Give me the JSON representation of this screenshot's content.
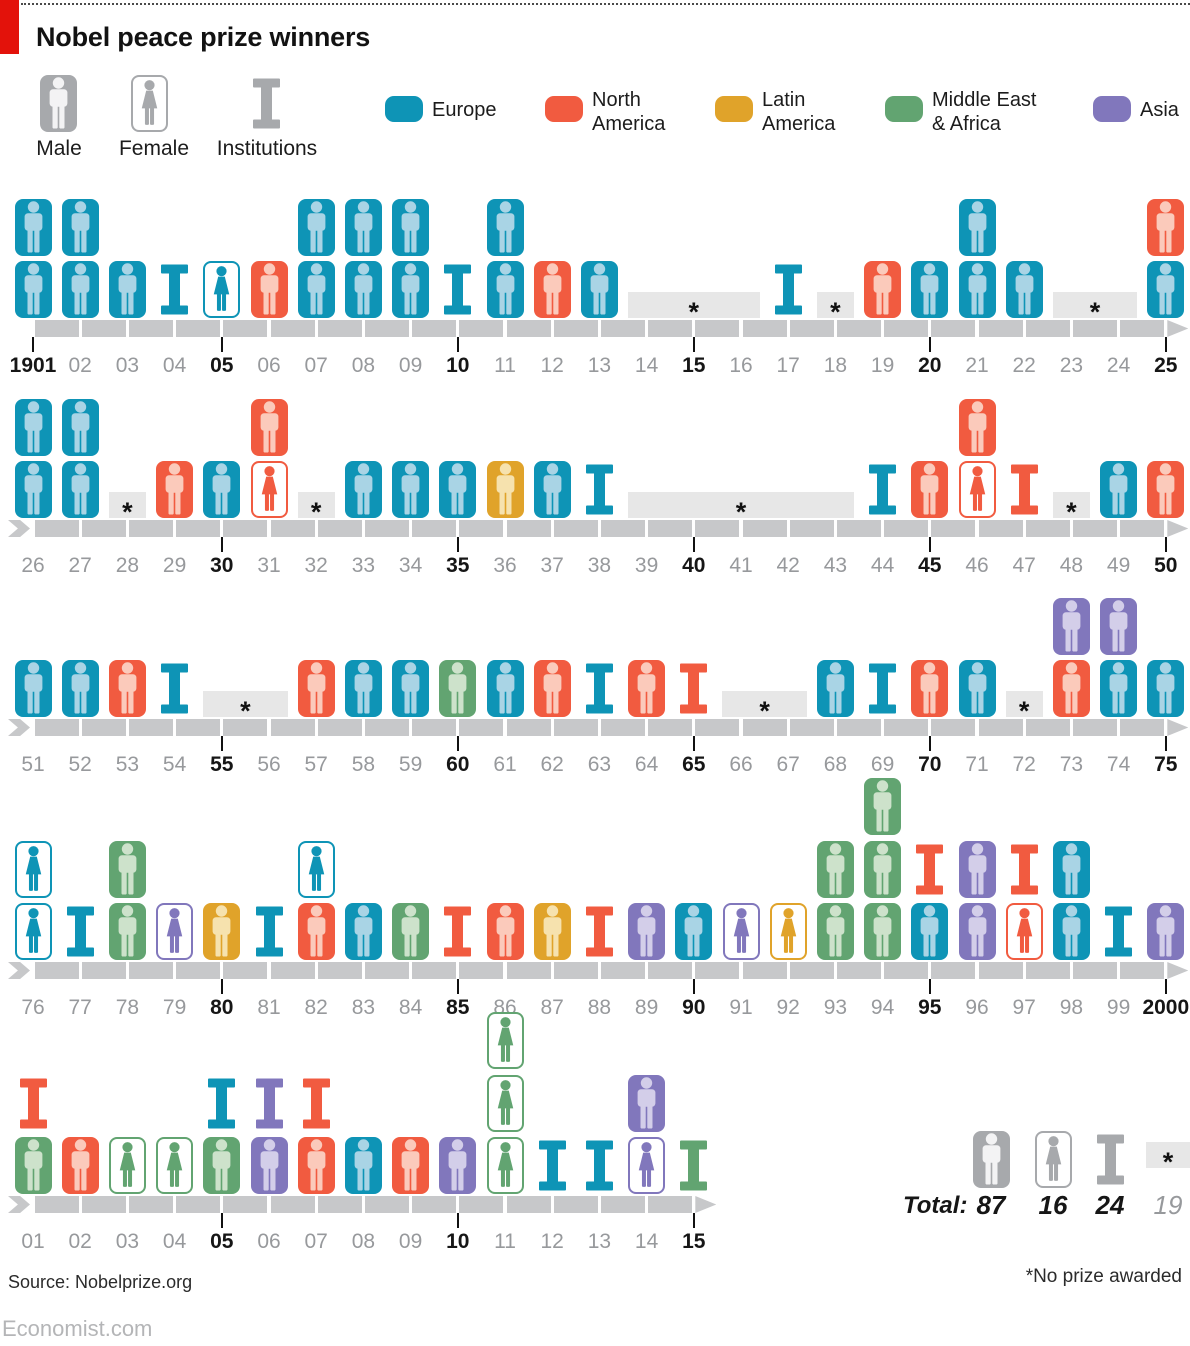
{
  "header": {
    "title": "Nobel peace prize winners"
  },
  "icon_legend": [
    {
      "key": "male",
      "label": "Male"
    },
    {
      "key": "female",
      "label": "Female"
    },
    {
      "key": "institution",
      "label": "Institutions"
    }
  ],
  "region_legend": [
    {
      "key": "eu",
      "lines": [
        "Europe"
      ]
    },
    {
      "key": "na",
      "lines": [
        "North",
        "America"
      ]
    },
    {
      "key": "la",
      "lines": [
        "Latin",
        "America"
      ]
    },
    {
      "key": "me",
      "lines": [
        "Middle East",
        "& Africa"
      ]
    },
    {
      "key": "as",
      "lines": [
        "Asia"
      ]
    }
  ],
  "totals": {
    "label": "Total:",
    "items": [
      {
        "icon": "male",
        "value": "87"
      },
      {
        "icon": "female",
        "value": "16"
      },
      {
        "icon": "institution",
        "value": "24"
      },
      {
        "icon": "noprize",
        "value": "19"
      }
    ]
  },
  "footer": {
    "source": "Source: Nobelprize.org",
    "note": "*No prize awarded",
    "brand": "Economist.com"
  },
  "chart_data": {
    "type": "pictogram-timeline",
    "title": "Nobel peace prize winners, 1901-2015",
    "noprize_marker": "*",
    "gray": {
      "color": "#a7a9ac",
      "tint": "#f3f3f4"
    },
    "regions": {
      "eu": {
        "label": "Europe",
        "color": "#0e94b6",
        "tint": "#a9d4e5"
      },
      "na": {
        "label": "North America",
        "color": "#f15b40",
        "tint": "#fbcabb"
      },
      "la": {
        "label": "Latin America",
        "color": "#e0a32a",
        "tint": "#f6e2ae"
      },
      "me": {
        "label": "Middle East & Africa",
        "color": "#62a471",
        "tint": "#cde2cb"
      },
      "as": {
        "label": "Asia",
        "color": "#8177bc",
        "tint": "#d3cee9"
      }
    },
    "icon_types": {
      "m": "male",
      "f": "female",
      "i": "institution"
    },
    "rows": [
      {
        "noprize": [
          [
            13,
            15
          ],
          [
            17,
            17
          ],
          [
            22,
            23
          ]
        ],
        "years": [
          {
            "label": "1901",
            "bold": true,
            "icons": [
              "m:eu",
              "m:eu"
            ]
          },
          {
            "label": "02",
            "icons": [
              "m:eu",
              "m:eu"
            ]
          },
          {
            "label": "03",
            "icons": [
              "m:eu"
            ]
          },
          {
            "label": "04",
            "icons": [
              "i:eu"
            ]
          },
          {
            "label": "05",
            "bold": true,
            "icons": [
              "f:eu"
            ]
          },
          {
            "label": "06",
            "icons": [
              "m:na"
            ]
          },
          {
            "label": "07",
            "icons": [
              "m:eu",
              "m:eu"
            ]
          },
          {
            "label": "08",
            "icons": [
              "m:eu",
              "m:eu"
            ]
          },
          {
            "label": "09",
            "icons": [
              "m:eu",
              "m:eu"
            ]
          },
          {
            "label": "10",
            "bold": true,
            "icons": [
              "i:eu"
            ]
          },
          {
            "label": "11",
            "icons": [
              "m:eu",
              "m:eu"
            ]
          },
          {
            "label": "12",
            "icons": [
              "m:na"
            ]
          },
          {
            "label": "13",
            "icons": [
              "m:eu"
            ]
          },
          {
            "label": "14",
            "icons": []
          },
          {
            "label": "15",
            "bold": true,
            "icons": []
          },
          {
            "label": "16",
            "icons": []
          },
          {
            "label": "17",
            "icons": [
              "i:eu"
            ]
          },
          {
            "label": "18",
            "icons": []
          },
          {
            "label": "19",
            "icons": [
              "m:na"
            ]
          },
          {
            "label": "20",
            "bold": true,
            "icons": [
              "m:eu"
            ]
          },
          {
            "label": "21",
            "icons": [
              "m:eu",
              "m:eu"
            ]
          },
          {
            "label": "22",
            "icons": [
              "m:eu"
            ]
          },
          {
            "label": "23",
            "icons": []
          },
          {
            "label": "24",
            "icons": []
          },
          {
            "label": "25",
            "bold": true,
            "icons": [
              "m:na",
              "m:eu"
            ]
          }
        ]
      },
      {
        "noprize": [
          [
            2,
            2
          ],
          [
            6,
            6
          ],
          [
            13,
            17
          ],
          [
            22,
            22
          ]
        ],
        "years": [
          {
            "label": "26",
            "icons": [
              "m:eu",
              "m:eu"
            ]
          },
          {
            "label": "27",
            "icons": [
              "m:eu",
              "m:eu"
            ]
          },
          {
            "label": "28",
            "icons": []
          },
          {
            "label": "29",
            "icons": [
              "m:na"
            ]
          },
          {
            "label": "30",
            "bold": true,
            "icons": [
              "m:eu"
            ]
          },
          {
            "label": "31",
            "icons": [
              "m:na",
              "f:na"
            ]
          },
          {
            "label": "32",
            "icons": []
          },
          {
            "label": "33",
            "icons": [
              "m:eu"
            ]
          },
          {
            "label": "34",
            "icons": [
              "m:eu"
            ]
          },
          {
            "label": "35",
            "bold": true,
            "icons": [
              "m:eu"
            ]
          },
          {
            "label": "36",
            "icons": [
              "m:la"
            ]
          },
          {
            "label": "37",
            "icons": [
              "m:eu"
            ]
          },
          {
            "label": "38",
            "icons": [
              "i:eu"
            ]
          },
          {
            "label": "39",
            "icons": []
          },
          {
            "label": "40",
            "bold": true,
            "icons": []
          },
          {
            "label": "41",
            "icons": []
          },
          {
            "label": "42",
            "icons": []
          },
          {
            "label": "43",
            "icons": []
          },
          {
            "label": "44",
            "icons": [
              "i:eu"
            ]
          },
          {
            "label": "45",
            "bold": true,
            "icons": [
              "m:na"
            ]
          },
          {
            "label": "46",
            "icons": [
              "m:na",
              "f:na"
            ]
          },
          {
            "label": "47",
            "icons": [
              "i:na"
            ]
          },
          {
            "label": "48",
            "icons": []
          },
          {
            "label": "49",
            "icons": [
              "m:eu"
            ]
          },
          {
            "label": "50",
            "bold": true,
            "icons": [
              "m:na"
            ]
          }
        ]
      },
      {
        "noprize": [
          [
            4,
            5
          ],
          [
            15,
            16
          ],
          [
            21,
            21
          ]
        ],
        "years": [
          {
            "label": "51",
            "icons": [
              "m:eu"
            ]
          },
          {
            "label": "52",
            "icons": [
              "m:eu"
            ]
          },
          {
            "label": "53",
            "icons": [
              "m:na"
            ]
          },
          {
            "label": "54",
            "icons": [
              "i:eu"
            ]
          },
          {
            "label": "55",
            "bold": true,
            "icons": []
          },
          {
            "label": "56",
            "icons": []
          },
          {
            "label": "57",
            "icons": [
              "m:na"
            ]
          },
          {
            "label": "58",
            "icons": [
              "m:eu"
            ]
          },
          {
            "label": "59",
            "icons": [
              "m:eu"
            ]
          },
          {
            "label": "60",
            "bold": true,
            "icons": [
              "m:me"
            ]
          },
          {
            "label": "61",
            "icons": [
              "m:eu"
            ]
          },
          {
            "label": "62",
            "icons": [
              "m:na"
            ]
          },
          {
            "label": "63",
            "icons": [
              "i:eu"
            ]
          },
          {
            "label": "64",
            "icons": [
              "m:na"
            ]
          },
          {
            "label": "65",
            "bold": true,
            "icons": [
              "i:na"
            ]
          },
          {
            "label": "66",
            "icons": []
          },
          {
            "label": "67",
            "icons": []
          },
          {
            "label": "68",
            "icons": [
              "m:eu"
            ]
          },
          {
            "label": "69",
            "icons": [
              "i:eu"
            ]
          },
          {
            "label": "70",
            "bold": true,
            "icons": [
              "m:na"
            ]
          },
          {
            "label": "71",
            "icons": [
              "m:eu"
            ]
          },
          {
            "label": "72",
            "icons": []
          },
          {
            "label": "73",
            "icons": [
              "m:as",
              "m:na"
            ]
          },
          {
            "label": "74",
            "icons": [
              "m:as",
              "m:eu"
            ]
          },
          {
            "label": "75",
            "bold": true,
            "icons": [
              "m:eu"
            ]
          }
        ]
      },
      {
        "noprize": [],
        "years": [
          {
            "label": "76",
            "icons": [
              "f:eu",
              "f:eu"
            ]
          },
          {
            "label": "77",
            "icons": [
              "i:eu"
            ]
          },
          {
            "label": "78",
            "icons": [
              "m:me",
              "m:me"
            ]
          },
          {
            "label": "79",
            "icons": [
              "f:as"
            ]
          },
          {
            "label": "80",
            "bold": true,
            "icons": [
              "m:la"
            ]
          },
          {
            "label": "81",
            "icons": [
              "i:eu"
            ]
          },
          {
            "label": "82",
            "icons": [
              "f:eu",
              "m:na"
            ]
          },
          {
            "label": "83",
            "icons": [
              "m:eu"
            ]
          },
          {
            "label": "84",
            "icons": [
              "m:me"
            ]
          },
          {
            "label": "85",
            "bold": true,
            "icons": [
              "i:na"
            ]
          },
          {
            "label": "86",
            "icons": [
              "m:na"
            ]
          },
          {
            "label": "87",
            "icons": [
              "m:la"
            ]
          },
          {
            "label": "88",
            "icons": [
              "i:na"
            ]
          },
          {
            "label": "89",
            "icons": [
              "m:as"
            ]
          },
          {
            "label": "90",
            "bold": true,
            "icons": [
              "m:eu"
            ]
          },
          {
            "label": "91",
            "icons": [
              "f:as"
            ]
          },
          {
            "label": "92",
            "icons": [
              "f:la"
            ]
          },
          {
            "label": "93",
            "icons": [
              "m:me",
              "m:me"
            ]
          },
          {
            "label": "94",
            "icons": [
              "m:me",
              "m:me",
              "m:me"
            ]
          },
          {
            "label": "95",
            "bold": true,
            "icons": [
              "i:na",
              "m:eu"
            ]
          },
          {
            "label": "96",
            "icons": [
              "m:as",
              "m:as"
            ]
          },
          {
            "label": "97",
            "icons": [
              "i:na",
              "f:na"
            ]
          },
          {
            "label": "98",
            "icons": [
              "m:eu",
              "m:eu"
            ]
          },
          {
            "label": "99",
            "icons": [
              "i:eu"
            ]
          },
          {
            "label": "2000",
            "bold": true,
            "icons": [
              "m:as"
            ]
          }
        ]
      },
      {
        "noprize": [],
        "years": [
          {
            "label": "01",
            "icons": [
              "i:na",
              "m:me"
            ]
          },
          {
            "label": "02",
            "icons": [
              "m:na"
            ]
          },
          {
            "label": "03",
            "icons": [
              "f:me"
            ]
          },
          {
            "label": "04",
            "icons": [
              "f:me"
            ]
          },
          {
            "label": "05",
            "bold": true,
            "icons": [
              "i:eu",
              "m:me"
            ]
          },
          {
            "label": "06",
            "icons": [
              "i:as",
              "m:as"
            ]
          },
          {
            "label": "07",
            "icons": [
              "i:na",
              "m:na"
            ]
          },
          {
            "label": "08",
            "icons": [
              "m:eu"
            ]
          },
          {
            "label": "09",
            "icons": [
              "m:na"
            ]
          },
          {
            "label": "10",
            "bold": true,
            "icons": [
              "m:as"
            ]
          },
          {
            "label": "11",
            "icons": [
              "f:me",
              "f:me",
              "f:me"
            ]
          },
          {
            "label": "12",
            "icons": [
              "i:eu"
            ]
          },
          {
            "label": "13",
            "icons": [
              "i:eu"
            ]
          },
          {
            "label": "14",
            "icons": [
              "m:as",
              "f:as"
            ]
          },
          {
            "label": "15",
            "bold": true,
            "icons": [
              "i:me"
            ]
          }
        ]
      }
    ]
  }
}
